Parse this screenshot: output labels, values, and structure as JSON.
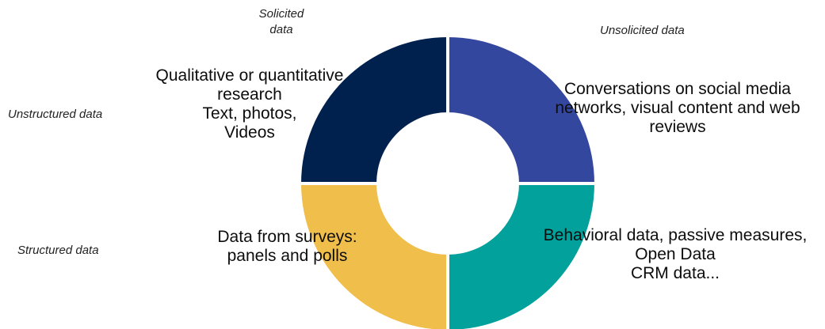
{
  "axes": {
    "top_left": [
      "Solicited",
      "data"
    ],
    "top_right": "Unsolicited data",
    "left_top": "Unstructured data",
    "left_bottom": "Structured data"
  },
  "quadrants": [
    {
      "position": "top-left",
      "color": "#00204d",
      "lines": [
        "Qualitative or quantitative",
        "research",
        "Text, photos,",
        "Videos"
      ]
    },
    {
      "position": "top-right",
      "color": "#34479e",
      "lines": [
        "Conversations on social media",
        "networks, visual content and web",
        "reviews"
      ]
    },
    {
      "position": "bottom-left",
      "color": "#f0be4a",
      "lines": [
        "Data from surveys:",
        "panels and polls"
      ]
    },
    {
      "position": "bottom-right",
      "color": "#02a19b",
      "lines": [
        "Behavioral data, passive measures,",
        "Open Data",
        "CRM data..."
      ]
    }
  ]
}
